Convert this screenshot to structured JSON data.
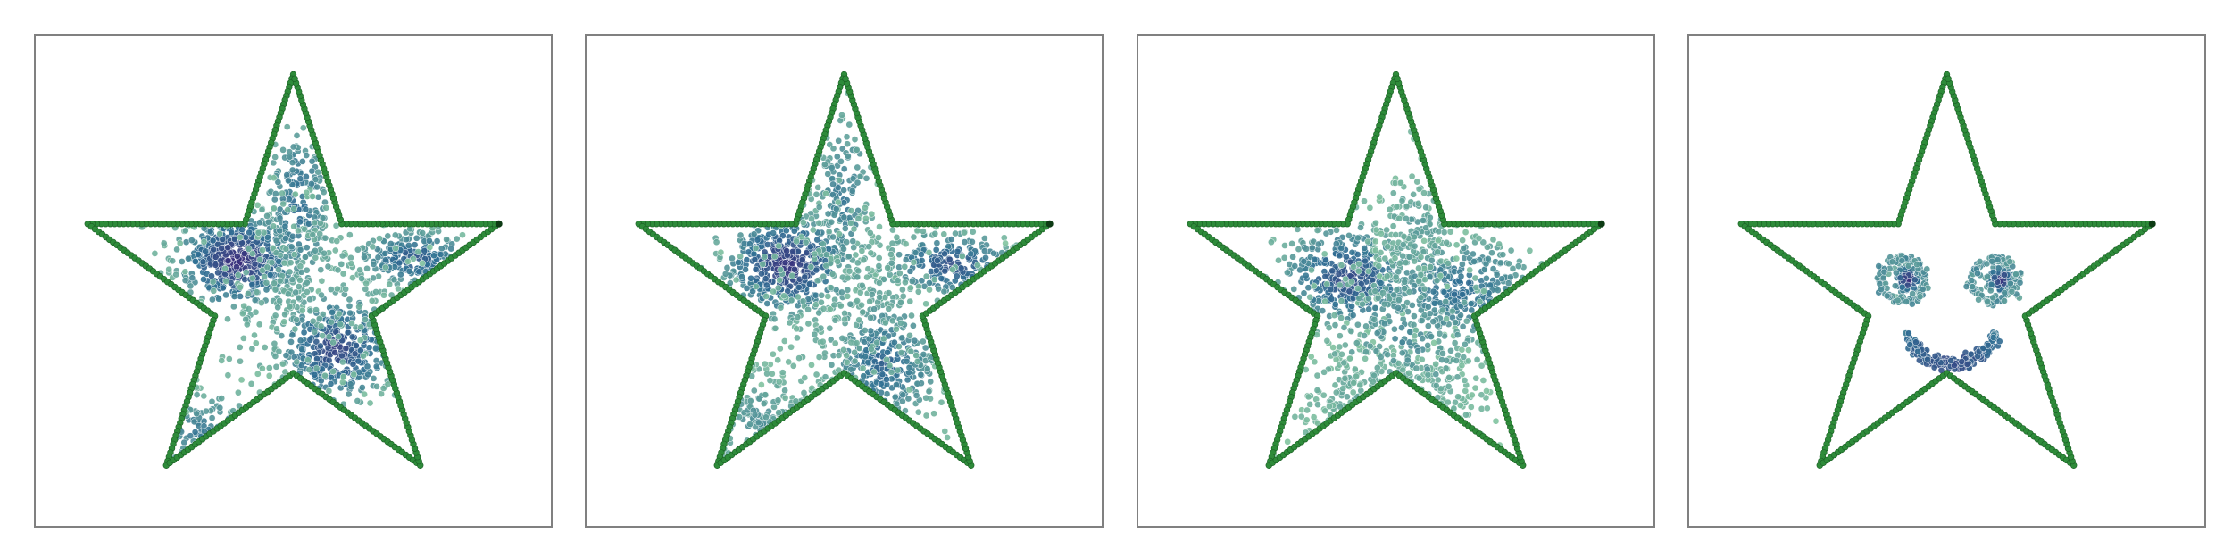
{
  "figure": {
    "panel_count": 4,
    "description_colors": {
      "star_outline": "#2e8b3a",
      "star_outline_edge": "#1a5e24",
      "dense": "#3b2a7a",
      "mid": "#2f6f93",
      "light": "#82c4a0"
    }
  },
  "chart_data": [
    {
      "type": "scatter",
      "title": "",
      "xlabel": "",
      "ylabel": "",
      "xlim": [
        -1.1,
        1.1
      ],
      "ylim": [
        -1.1,
        1.1
      ],
      "grid": false,
      "outline": "star",
      "clusters": [
        {
          "cx": -0.26,
          "cy": 0.14,
          "sx": 0.14,
          "sy": 0.11,
          "n": 520,
          "density": 1.0
        },
        {
          "cx": 0.2,
          "cy": -0.27,
          "sx": 0.14,
          "sy": 0.13,
          "n": 400,
          "density": 0.85
        },
        {
          "cx": 0.56,
          "cy": 0.15,
          "sx": 0.14,
          "sy": 0.07,
          "n": 230,
          "density": 0.7
        },
        {
          "cx": 0.02,
          "cy": 0.4,
          "sx": 0.09,
          "sy": 0.22,
          "n": 220,
          "density": 0.55
        },
        {
          "cx": -0.43,
          "cy": -0.65,
          "sx": 0.14,
          "sy": 0.1,
          "n": 190,
          "density": 0.45
        },
        {
          "cx": 0.08,
          "cy": -0.02,
          "sx": 0.3,
          "sy": 0.28,
          "n": 260,
          "density": 0.2
        }
      ]
    },
    {
      "type": "scatter",
      "title": "",
      "xlabel": "",
      "ylabel": "",
      "xlim": [
        -1.1,
        1.1
      ],
      "ylim": [
        -1.1,
        1.1
      ],
      "grid": false,
      "outline": "star",
      "clusters": [
        {
          "cx": -0.26,
          "cy": 0.12,
          "sx": 0.15,
          "sy": 0.12,
          "n": 480,
          "density": 0.95
        },
        {
          "cx": 0.5,
          "cy": 0.12,
          "sx": 0.16,
          "sy": 0.08,
          "n": 240,
          "density": 0.75
        },
        {
          "cx": 0.18,
          "cy": -0.34,
          "sx": 0.14,
          "sy": 0.16,
          "n": 380,
          "density": 0.6
        },
        {
          "cx": -0.4,
          "cy": -0.62,
          "sx": 0.16,
          "sy": 0.16,
          "n": 280,
          "density": 0.3
        },
        {
          "cx": 0.0,
          "cy": 0.42,
          "sx": 0.08,
          "sy": 0.22,
          "n": 170,
          "density": 0.45
        },
        {
          "cx": 0.05,
          "cy": -0.05,
          "sx": 0.32,
          "sy": 0.3,
          "n": 260,
          "density": 0.2
        }
      ]
    },
    {
      "type": "scatter",
      "title": "",
      "xlabel": "",
      "ylabel": "",
      "xlim": [
        -1.1,
        1.1
      ],
      "ylim": [
        -1.1,
        1.1
      ],
      "grid": false,
      "outline": "star",
      "clusters": [
        {
          "cx": -0.22,
          "cy": 0.06,
          "sx": 0.16,
          "sy": 0.12,
          "n": 420,
          "density": 0.8
        },
        {
          "cx": 0.3,
          "cy": 0.0,
          "sx": 0.2,
          "sy": 0.13,
          "n": 380,
          "density": 0.55
        },
        {
          "cx": 0.1,
          "cy": 0.3,
          "sx": 0.1,
          "sy": 0.14,
          "n": 160,
          "density": 0.25
        },
        {
          "cx": -0.05,
          "cy": -0.5,
          "sx": 0.24,
          "sy": 0.14,
          "n": 420,
          "density": 0.2
        },
        {
          "cx": 0.05,
          "cy": -0.2,
          "sx": 0.22,
          "sy": 0.2,
          "n": 220,
          "density": 0.35
        }
      ]
    },
    {
      "type": "scatter",
      "title": "",
      "xlabel": "",
      "ylabel": "",
      "xlim": [
        -1.1,
        1.1
      ],
      "ylim": [
        -1.1,
        1.1
      ],
      "grid": false,
      "outline": "star",
      "clusters": [
        {
          "cx": -0.18,
          "cy": 0.05,
          "sx": 0.035,
          "sy": 0.035,
          "n": 90,
          "density": 1.0
        },
        {
          "cx": 0.25,
          "cy": 0.05,
          "sx": 0.035,
          "sy": 0.035,
          "n": 90,
          "density": 1.0
        }
      ],
      "rings": [
        {
          "cx": -0.2,
          "cy": 0.05,
          "r": 0.1,
          "n": 110,
          "density": 0.3
        },
        {
          "cx": 0.22,
          "cy": 0.05,
          "r": 0.1,
          "n": 110,
          "density": 0.3
        }
      ],
      "arcs": [
        {
          "cx": 0.02,
          "cy": -0.12,
          "r": 0.22,
          "from_deg": 200,
          "to_deg": 340,
          "n": 200,
          "density": 0.35
        }
      ]
    }
  ]
}
